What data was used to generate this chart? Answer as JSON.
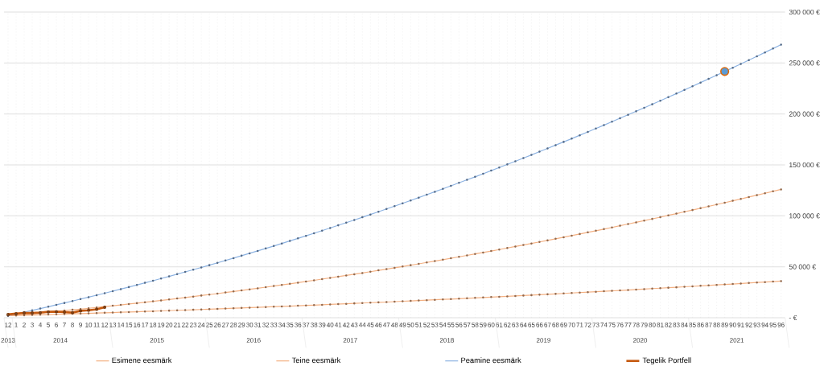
{
  "chart_data": {
    "type": "line",
    "categories": [
      "12",
      "1",
      "2",
      "3",
      "4",
      "5",
      "6",
      "7",
      "8",
      "9",
      "10",
      "11",
      "12",
      "13",
      "14",
      "15",
      "16",
      "17",
      "18",
      "19",
      "20",
      "21",
      "22",
      "23",
      "24",
      "25",
      "26",
      "27",
      "28",
      "29",
      "30",
      "31",
      "32",
      "33",
      "34",
      "35",
      "36",
      "37",
      "38",
      "39",
      "40",
      "41",
      "42",
      "43",
      "44",
      "45",
      "46",
      "47",
      "48",
      "49",
      "50",
      "51",
      "52",
      "53",
      "54",
      "55",
      "56",
      "57",
      "58",
      "59",
      "60",
      "61",
      "62",
      "63",
      "64",
      "65",
      "66",
      "67",
      "68",
      "69",
      "70",
      "71",
      "72",
      "73",
      "74",
      "75",
      "76",
      "77",
      "78",
      "79",
      "80",
      "81",
      "82",
      "83",
      "84",
      "85",
      "86",
      "87",
      "88",
      "89",
      "90",
      "91",
      "92",
      "93",
      "94",
      "95",
      "96"
    ],
    "series": [
      {
        "name": "Esimene eesmärk",
        "color": "#f4b183",
        "values": [
          2000,
          2200,
          2400,
          2700,
          2900,
          3100,
          3400,
          3600,
          3900,
          4100,
          4300,
          4600,
          4900,
          5100,
          5400,
          5600,
          5900,
          6200,
          6400,
          6700,
          7000,
          7300,
          7500,
          7800,
          8100,
          8400,
          8700,
          9000,
          9300,
          9600,
          9900,
          10200,
          10500,
          10800,
          11100,
          11400,
          11800,
          12100,
          12400,
          12700,
          13100,
          13400,
          13700,
          14100,
          14400,
          14800,
          15100,
          15400,
          15800,
          16200,
          16500,
          16900,
          17200,
          17600,
          18000,
          18300,
          18700,
          19100,
          19500,
          19900,
          20300,
          20600,
          21000,
          21400,
          21800,
          22200,
          22600,
          23000,
          23400,
          23900,
          24300,
          24700,
          25100,
          25500,
          26000,
          26400,
          26800,
          27200,
          27700,
          28100,
          28600,
          29000,
          29500,
          29900,
          30400,
          30800,
          31300,
          31700,
          32200,
          32700,
          33100,
          33600,
          34100,
          34600,
          35000,
          35500,
          36000
        ]
      },
      {
        "name": "Teine eesmärk",
        "color": "#f4b183",
        "values": [
          2000,
          2700,
          3400,
          4100,
          4800,
          5500,
          6200,
          7000,
          7800,
          8500,
          9300,
          10100,
          10900,
          11800,
          12600,
          13500,
          14300,
          15200,
          16100,
          17000,
          17900,
          18900,
          19800,
          20800,
          21800,
          22700,
          23700,
          24800,
          25800,
          26800,
          27900,
          28900,
          30000,
          31100,
          32200,
          33300,
          34400,
          35600,
          36700,
          37900,
          39100,
          40300,
          41500,
          42700,
          43900,
          45200,
          46500,
          47700,
          49000,
          50300,
          51600,
          52900,
          54300,
          55600,
          57000,
          58400,
          59800,
          61200,
          62600,
          64000,
          65500,
          66900,
          68400,
          69900,
          71400,
          72900,
          74400,
          75900,
          77500,
          79000,
          80600,
          82200,
          83800,
          85400,
          87000,
          88600,
          90300,
          92000,
          93600,
          95300,
          97000,
          98700,
          100500,
          102200,
          104000,
          105700,
          107500,
          109300,
          111100,
          112900,
          114800,
          116600,
          118500,
          120300,
          122200,
          124100,
          126000
        ]
      },
      {
        "name": "Peamine eesmärk",
        "color": "#8db3e2",
        "values": [
          2000,
          3700,
          5500,
          7200,
          9000,
          10800,
          12700,
          14500,
          16400,
          18300,
          20200,
          22100,
          24100,
          26100,
          28100,
          30100,
          32200,
          34300,
          36300,
          38500,
          40600,
          42800,
          45000,
          47200,
          49400,
          51600,
          53900,
          56200,
          58500,
          60900,
          63200,
          65600,
          68000,
          70400,
          72900,
          75400,
          77900,
          80400,
          82900,
          85500,
          88100,
          90700,
          93300,
          95900,
          98600,
          101300,
          104000,
          106800,
          109500,
          112300,
          115100,
          117900,
          120800,
          123600,
          126500,
          129500,
          132400,
          135400,
          138300,
          141300,
          144400,
          147400,
          150500,
          153600,
          156700,
          159800,
          163000,
          166200,
          169400,
          172600,
          175800,
          179100,
          182400,
          185700,
          189000,
          192400,
          195800,
          199200,
          202600,
          206000,
          209500,
          213000,
          216500,
          220000,
          223600,
          227200,
          230800,
          234400,
          238000,
          241700,
          245400,
          249100,
          252800,
          256600,
          260400,
          264200,
          268000
        ]
      },
      {
        "name": "Tegelik Portfell",
        "color": "#c55a11",
        "values": [
          3200,
          4000,
          4700,
          4700,
          5000,
          5800,
          6000,
          5500,
          5000,
          6800,
          7300,
          8300,
          10300,
          null,
          null,
          null,
          null,
          null,
          null,
          null,
          null,
          null,
          null,
          null,
          null,
          null,
          null,
          null,
          null,
          null,
          null,
          null,
          null,
          null,
          null,
          null,
          null,
          null,
          null,
          null,
          null,
          null,
          null,
          null,
          null,
          null,
          null,
          null,
          null,
          null,
          null,
          null,
          null,
          null,
          null,
          null,
          null,
          null,
          null,
          null,
          null,
          null,
          null,
          null,
          null,
          null,
          null,
          null,
          null,
          null,
          null,
          null,
          null,
          null,
          null,
          null,
          null,
          null,
          null,
          null,
          null,
          null,
          null,
          null,
          null,
          null,
          null,
          null,
          null,
          null,
          null,
          null,
          null,
          null,
          null,
          null,
          null
        ]
      },
      {
        "type": "scatter",
        "color": "#5b9bd5",
        "x": [
          "89"
        ],
        "values": [
          241700
        ]
      }
    ],
    "ylim": [
      0,
      300000
    ],
    "yticks": [
      {
        "value": 0,
        "label": "-  €"
      },
      {
        "value": 50000,
        "label": "50 000 €"
      },
      {
        "value": 100000,
        "label": "100 000 €"
      },
      {
        "value": 150000,
        "label": "150 000 €"
      },
      {
        "value": 200000,
        "label": "200 000 €"
      },
      {
        "value": 250000,
        "label": "250 000 €"
      },
      {
        "value": 300000,
        "label": "300 000 €"
      }
    ],
    "grid": true,
    "legend": "bottom",
    "marker": "circle",
    "annotations": [
      "2013",
      "2014",
      "2015",
      "2016",
      "2017",
      "2018",
      "2019",
      "2020",
      "2021"
    ]
  }
}
